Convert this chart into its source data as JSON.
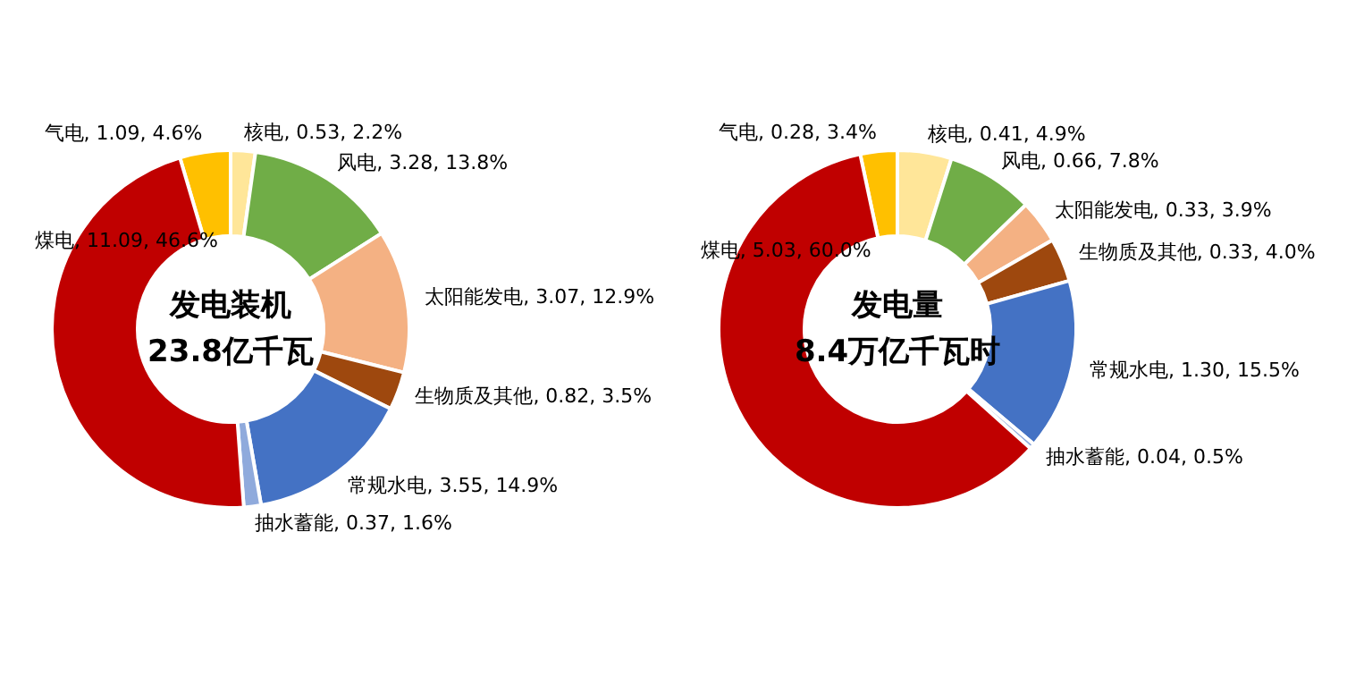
{
  "chart_data": [
    {
      "type": "donut",
      "title": "发电装机",
      "subtitle": "23.8亿千瓦",
      "categories": [
        "气电",
        "核电",
        "风电",
        "太阳能发电",
        "生物质及其他",
        "常规水电",
        "抽水蓄能",
        "煤电"
      ],
      "values": [
        1.09,
        0.53,
        3.28,
        3.07,
        0.82,
        3.55,
        0.37,
        11.09
      ],
      "colors": [
        "#ffc000",
        "#ffe699",
        "#70ad47",
        "#f4b183",
        "#9e480e",
        "#4472c4",
        "#8faadc",
        "#c00000"
      ],
      "value_labels": [
        ", 1.09, 4.6%",
        ", 0.53, 2.2%",
        ", 3.28, 13.8%",
        ", 3.07, 12.9%",
        ", 0.82, 3.5%",
        ", 3.55, 14.9%",
        ", 0.37, 1.6%",
        ", 11.09, 46.6%"
      ]
    },
    {
      "type": "donut",
      "title": "发电量",
      "subtitle": "8.4万亿千瓦时",
      "categories": [
        "气电",
        "核电",
        "风电",
        "太阳能发电",
        "生物质及其他",
        "常规水电",
        "抽水蓄能",
        "煤电"
      ],
      "values": [
        0.28,
        0.41,
        0.66,
        0.33,
        0.33,
        1.3,
        0.04,
        5.03
      ],
      "colors": [
        "#ffc000",
        "#ffe699",
        "#70ad47",
        "#f4b183",
        "#9e480e",
        "#4472c4",
        "#8faadc",
        "#c00000"
      ],
      "value_labels": [
        ", 0.28, 3.4%",
        ", 0.41, 4.9%",
        ", 0.66, 7.8%",
        ", 0.33, 3.9%",
        ", 0.33, 4.0%",
        ", 1.30, 15.5%",
        ", 0.04, 0.5%",
        ", 5.03, 60.0%"
      ]
    }
  ]
}
